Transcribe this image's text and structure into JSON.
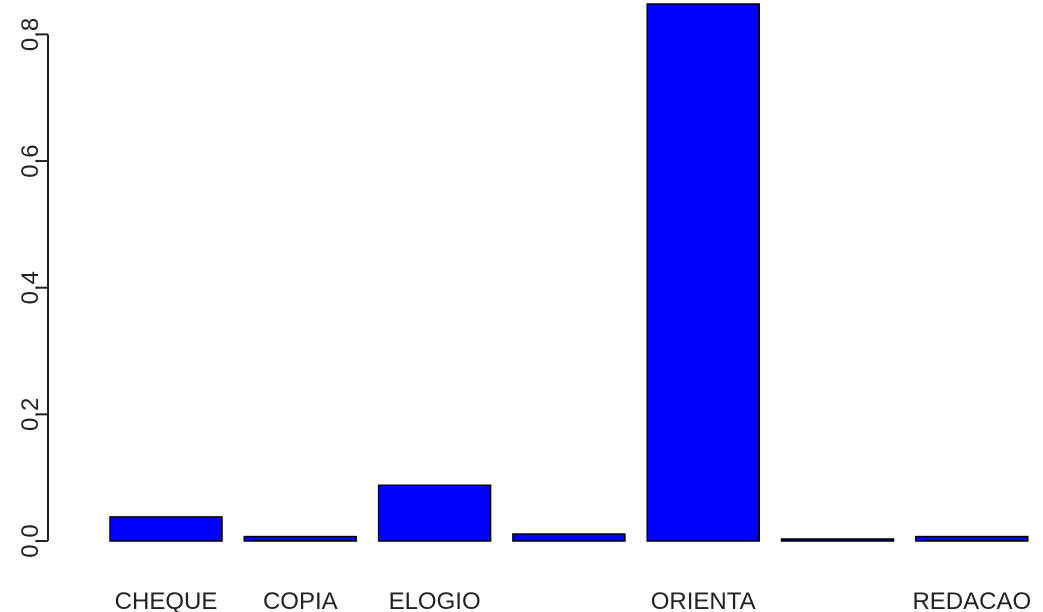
{
  "chart_data": {
    "type": "bar",
    "categories": [
      "CHEQUE",
      "COPIA",
      "ELOGIO",
      "",
      "ORIENTA",
      "",
      "REDACAO"
    ],
    "values": [
      0.038,
      0.007,
      0.088,
      0.011,
      0.848,
      0.003,
      0.007
    ],
    "yticks": [
      0.0,
      0.2,
      0.4,
      0.6,
      0.8
    ],
    "ytick_labels": [
      "0.0",
      "0.2",
      "0.4",
      "0.6",
      "0.8"
    ],
    "ylim": [
      0,
      0.848
    ],
    "title": "",
    "xlabel": "",
    "ylabel": "",
    "bar_color": "#0000ff",
    "bar_border_color": "#000000",
    "grid": false,
    "legend": "none"
  }
}
